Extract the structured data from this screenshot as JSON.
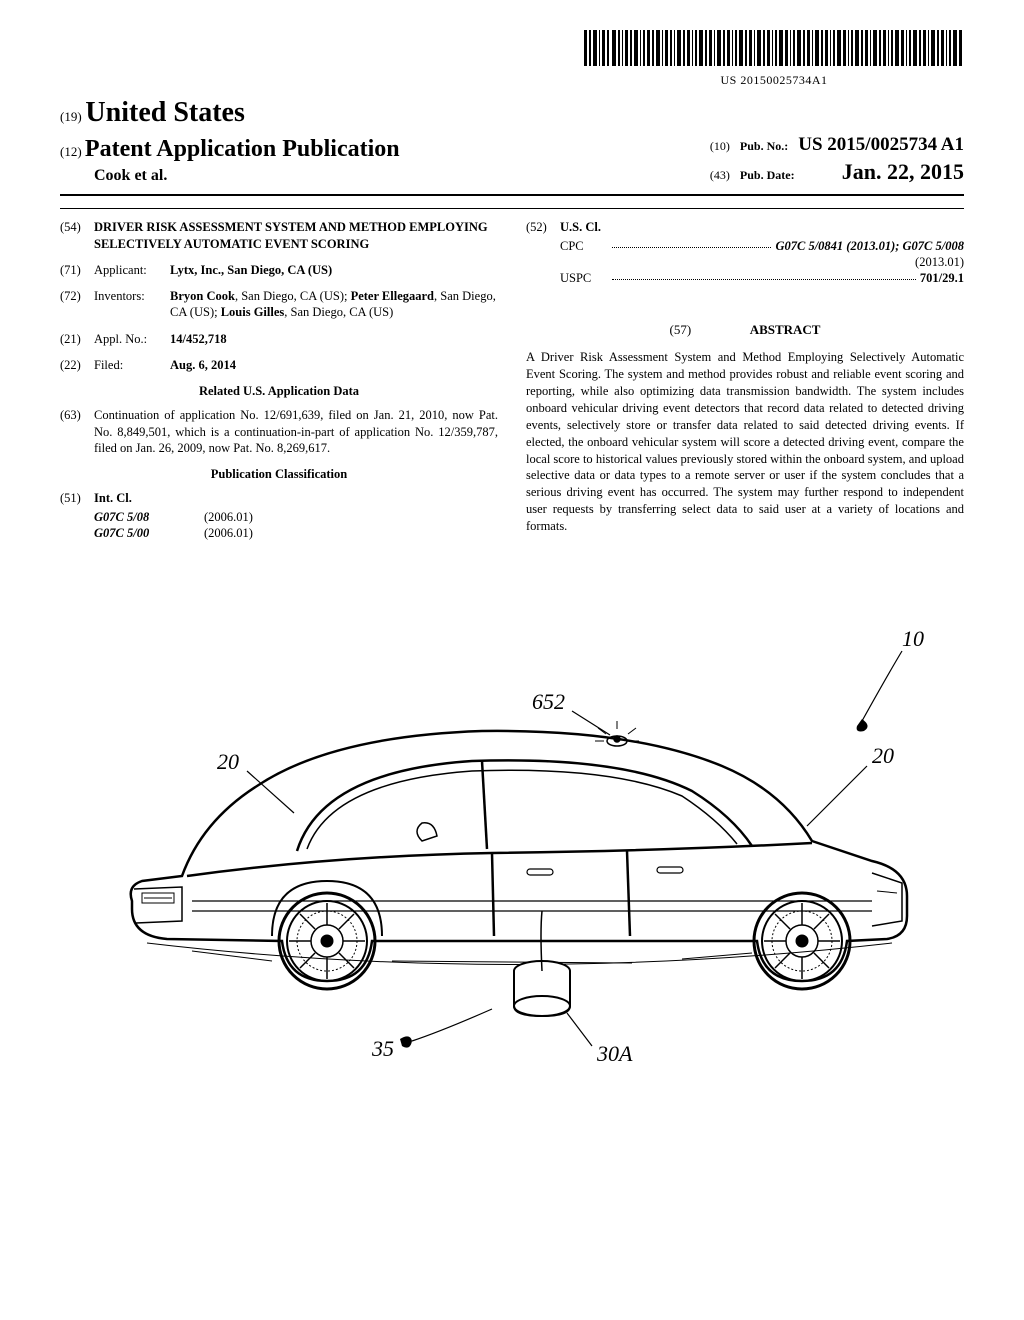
{
  "barcode": {
    "text": "US 20150025734A1"
  },
  "header": {
    "country_code": "(19)",
    "country": "United States",
    "pub_code": "(12)",
    "pub_type": "Patent Application Publication",
    "author_line": "Cook et al.",
    "pubno_code": "(10)",
    "pubno_label": "Pub. No.:",
    "pubno": "US 2015/0025734 A1",
    "pubdate_code": "(43)",
    "pubdate_label": "Pub. Date:",
    "pubdate": "Jan. 22, 2015"
  },
  "left": {
    "title_code": "(54)",
    "title": "DRIVER RISK ASSESSMENT SYSTEM AND METHOD EMPLOYING SELECTIVELY AUTOMATIC EVENT SCORING",
    "applicant_code": "(71)",
    "applicant_label": "Applicant:",
    "applicant": "Lytx, Inc., San Diego, CA (US)",
    "inventors_code": "(72)",
    "inventors_label": "Inventors:",
    "inventors": "Bryon Cook, San Diego, CA (US); Peter Ellegaard, San Diego, CA (US); Louis Gilles, San Diego, CA (US)",
    "applno_code": "(21)",
    "applno_label": "Appl. No.:",
    "applno": "14/452,718",
    "filed_code": "(22)",
    "filed_label": "Filed:",
    "filed": "Aug. 6, 2014",
    "related_hdr": "Related U.S. Application Data",
    "continuation_code": "(63)",
    "continuation": "Continuation of application No. 12/691,639, filed on Jan. 21, 2010, now Pat. No. 8,849,501, which is a continuation-in-part of application No. 12/359,787, filed on Jan. 26, 2009, now Pat. No. 8,269,617.",
    "pubclass_hdr": "Publication Classification",
    "intcl_code": "(51)",
    "intcl_label": "Int. Cl.",
    "intcl": [
      {
        "code": "G07C 5/08",
        "year": "(2006.01)"
      },
      {
        "code": "G07C 5/00",
        "year": "(2006.01)"
      }
    ]
  },
  "right": {
    "uscl_code": "(52)",
    "uscl_label": "U.S. Cl.",
    "cpc_label": "CPC",
    "cpc_val": "G07C 5/0841 (2013.01); G07C 5/008",
    "cpc_tail": "(2013.01)",
    "uspc_label": "USPC",
    "uspc_val": "701/29.1",
    "abstract_code": "(57)",
    "abstract_label": "ABSTRACT",
    "abstract": "A Driver Risk Assessment System and Method Employing Selectively Automatic Event Scoring. The system and method provides robust and reliable event scoring and reporting, while also optimizing data transmission bandwidth. The system includes onboard vehicular driving event detectors that record data related to detected driving events, selectively store or transfer data related to said detected driving events. If elected, the onboard vehicular system will score a detected driving event, compare the local score to historical values previously stored within the onboard system, and upload selective data or data types to a remote server or user if the system concludes that a serious driving event has occurred. The system may further respond to independent user requests by transferring select data to said user at a variety of locations and formats."
  },
  "figure": {
    "labels": {
      "ten": "10",
      "twenty_l": "20",
      "twenty_r": "20",
      "thirtyA": "30A",
      "thirtyfive": "35",
      "sixfiftytwo": "652"
    }
  }
}
